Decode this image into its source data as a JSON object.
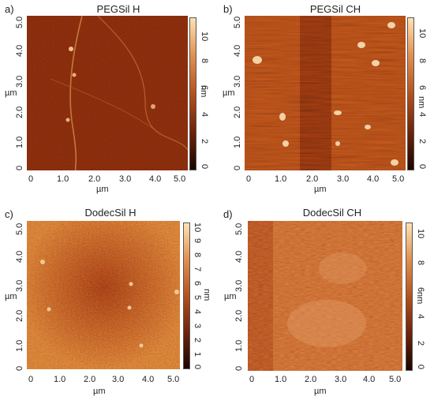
{
  "panels": [
    {
      "label": "a)",
      "title": "PEGSil H",
      "x_ticks": [
        "0",
        "1.0",
        "2.0",
        "3.0",
        "4.0",
        "5.0"
      ],
      "y_ticks": [
        "0",
        "1.0",
        "2.0",
        "3.0",
        "4.0",
        "5.0"
      ],
      "x_unit": "µm",
      "y_unit": "µm",
      "colorbar_ticks": [
        "0",
        "2",
        "4",
        "6",
        "8",
        "10"
      ],
      "colorbar_unit": "nm"
    },
    {
      "label": "b)",
      "title": "PEGSil CH",
      "x_ticks": [
        "0",
        "1.0",
        "2.0",
        "3.0",
        "4.0",
        "5.0"
      ],
      "y_ticks": [
        "0",
        "1.0",
        "2.0",
        "3.0",
        "4.0",
        "5.0"
      ],
      "x_unit": "µm",
      "y_unit": "µm",
      "colorbar_ticks": [
        "0",
        "2",
        "4",
        "6",
        "8",
        "10"
      ],
      "colorbar_unit": "nm"
    },
    {
      "label": "c)",
      "title": "DodecSil H",
      "x_ticks": [
        "0",
        "1.0",
        "2.0",
        "3.0",
        "4.0",
        "5.0"
      ],
      "y_ticks": [
        "0",
        "1.0",
        "2.0",
        "3.0",
        "4.0",
        "5.0"
      ],
      "x_unit": "µm",
      "y_unit": "µm",
      "colorbar_ticks": [
        "0",
        "1",
        "2",
        "3",
        "4",
        "5",
        "6",
        "7",
        "8",
        "9",
        "10"
      ],
      "colorbar_unit": "nm"
    },
    {
      "label": "d)",
      "title": "DodecSil CH",
      "x_ticks": [
        "0",
        "1.0",
        "2.0",
        "3.0",
        "4.0",
        "5.0"
      ],
      "y_ticks": [
        "0",
        "1.0",
        "2.0",
        "3.0",
        "4.0",
        "5.0"
      ],
      "x_unit": "µm",
      "y_unit": "µm",
      "colorbar_ticks": [
        "0",
        "2",
        "4",
        "6",
        "8",
        "10"
      ],
      "colorbar_unit": "nm"
    }
  ],
  "colors": {
    "colormap_dark": "#1a0600",
    "colormap_mid": "#b4521e",
    "colormap_light": "#ffe2b4"
  }
}
